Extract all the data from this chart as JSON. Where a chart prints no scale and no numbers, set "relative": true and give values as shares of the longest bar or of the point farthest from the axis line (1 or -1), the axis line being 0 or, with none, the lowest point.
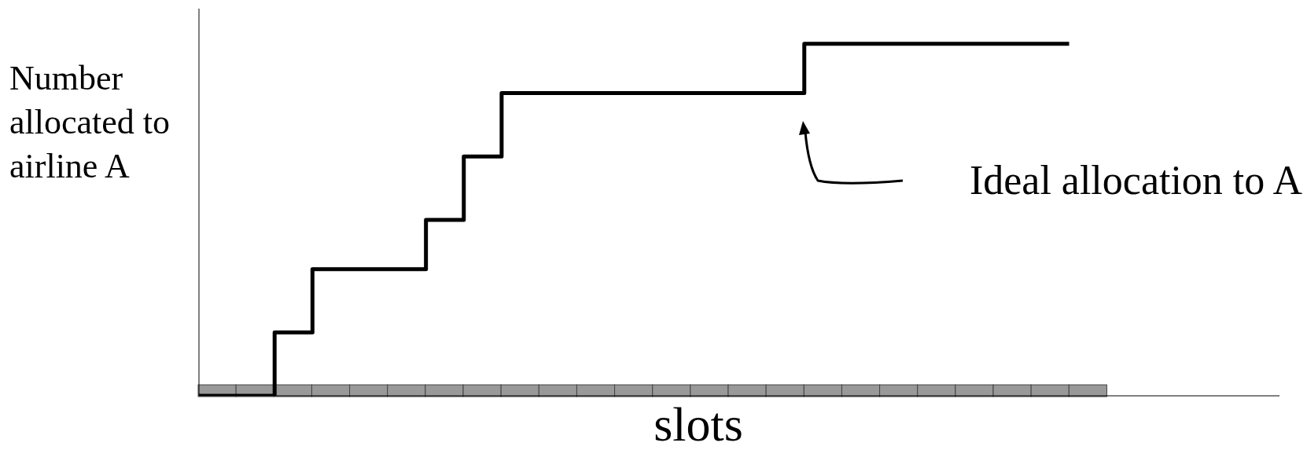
{
  "chart_data": {
    "type": "step",
    "relative": true,
    "ylabel": "Number allocated to airline A",
    "xlabel": "slots",
    "annotations": [
      "Ideal allocation to A"
    ],
    "marker": "none",
    "color": "#000000",
    "categories": [
      null,
      null,
      null,
      null,
      null,
      null,
      null,
      null,
      null,
      null,
      null,
      null,
      null,
      null,
      null,
      null,
      null,
      null,
      null,
      null,
      null,
      null,
      null,
      null
    ],
    "values": [
      0,
      0,
      0.18,
      0.36,
      0.36,
      0.36,
      0.5,
      0.68,
      0.86,
      0.86,
      0.86,
      0.86,
      0.86,
      0.86,
      0.86,
      0.86,
      1,
      1,
      1,
      1,
      1,
      1,
      1,
      1
    ]
  }
}
